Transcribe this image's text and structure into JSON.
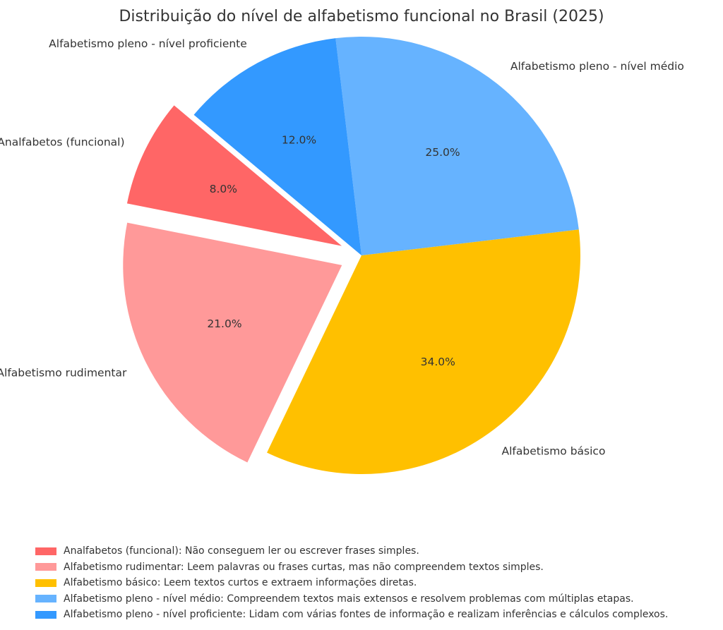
{
  "chart_data": {
    "type": "pie",
    "title": "Distribuição do nível de alfabetismo funcional no Brasil (2025)",
    "start_angle_deg": 140,
    "direction": "counterclockwise",
    "slices": [
      {
        "label": "Analfabetos (funcional)",
        "value": 8.0,
        "pct_label": "8.0%",
        "color": "#ff6666",
        "exploded": true
      },
      {
        "label": "Alfabetismo rudimentar",
        "value": 21.0,
        "pct_label": "21.0%",
        "color": "#ff9999",
        "exploded": true
      },
      {
        "label": "Alfabetismo básico",
        "value": 34.0,
        "pct_label": "34.0%",
        "color": "#ffc000",
        "exploded": false
      },
      {
        "label": "Alfabetismo pleno - nível médio",
        "value": 25.0,
        "pct_label": "25.0%",
        "color": "#66b3ff",
        "exploded": false
      },
      {
        "label": "Alfabetismo pleno - nível proficiente",
        "value": 12.0,
        "pct_label": "12.0%",
        "color": "#3399ff",
        "exploded": false
      }
    ],
    "legend": {
      "placement": "bottom",
      "entries": [
        "Analfabetos (funcional): Não conseguem ler ou escrever frases simples.",
        "Alfabetismo rudimentar: Leem palavras ou frases curtas, mas não compreendem textos simples.",
        "Alfabetismo básico: Leem textos curtos e extraem informações diretas.",
        "Alfabetismo pleno - nível médio: Compreendem textos mais extensos e resolvem problemas com múltiplas etapas.",
        "Alfabetismo pleno - nível proficiente: Lidam com várias fontes de informação e realizam inferências e cálculos complexos."
      ]
    }
  }
}
